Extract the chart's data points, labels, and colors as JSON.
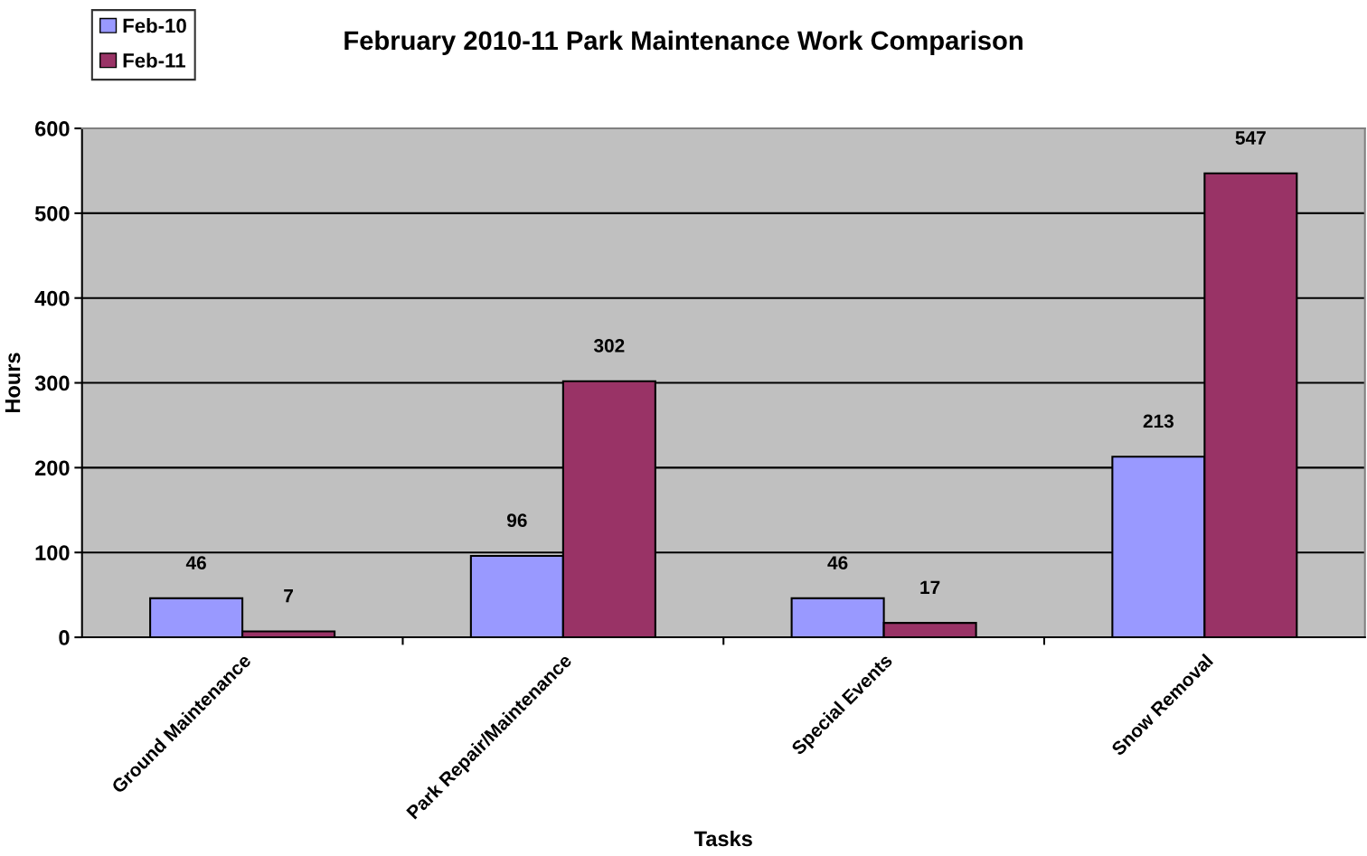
{
  "chart_data": {
    "type": "bar",
    "title": "February 2010-11 Park Maintenance Work Comparison",
    "xlabel": "Tasks",
    "ylabel": "Hours",
    "categories": [
      "Ground Maintenance",
      "Park Repair/Maintenance",
      "Special Events",
      "Snow Removal"
    ],
    "series": [
      {
        "name": "Feb-10",
        "color": "#9999ff",
        "values": [
          46,
          96,
          46,
          213
        ]
      },
      {
        "name": "Feb-11",
        "color": "#993366",
        "values": [
          7,
          302,
          17,
          547
        ]
      }
    ],
    "ylim": [
      0,
      600
    ],
    "yticks": [
      0,
      100,
      200,
      300,
      400,
      500,
      600
    ],
    "grid": "y",
    "legend": "top left",
    "data_labels": true
  }
}
